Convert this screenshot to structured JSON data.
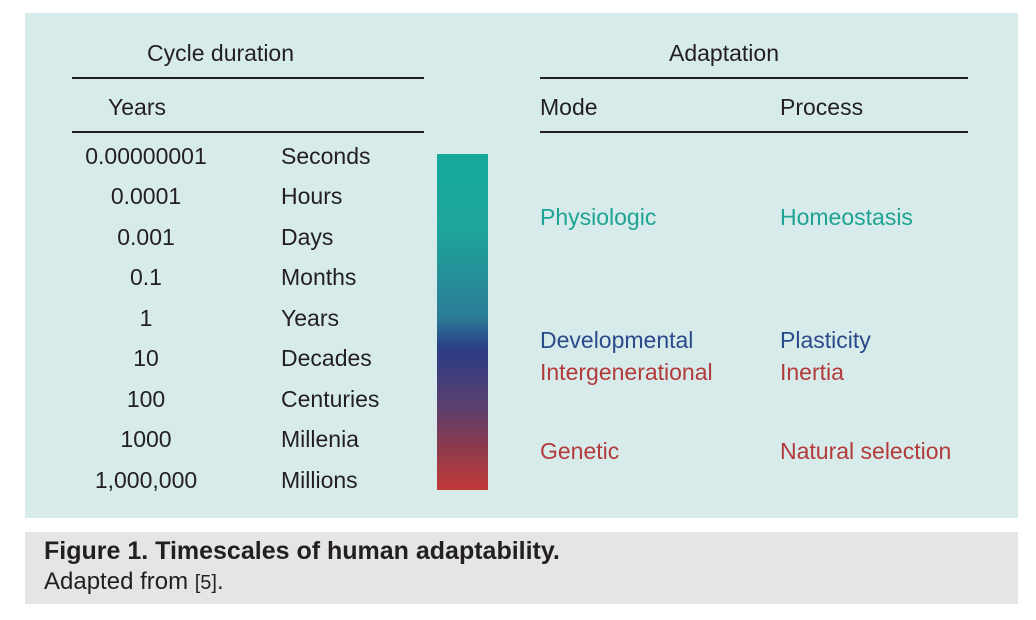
{
  "header": {
    "cycle_duration": "Cycle duration",
    "adaptation": "Adaptation",
    "years": "Years",
    "mode": "Mode",
    "process": "Process"
  },
  "rows": [
    {
      "years": "0.00000001",
      "unit": "Seconds"
    },
    {
      "years": "0.0001",
      "unit": "Hours"
    },
    {
      "years": "0.001",
      "unit": "Days"
    },
    {
      "years": "0.1",
      "unit": "Months"
    },
    {
      "years": "1",
      "unit": "Years"
    },
    {
      "years": "10",
      "unit": "Decades"
    },
    {
      "years": "100",
      "unit": "Centuries"
    },
    {
      "years": "1000",
      "unit": "Millenia"
    },
    {
      "years": "1,000,000",
      "unit": "Millions"
    }
  ],
  "gradient_colors": [
    "#15a99b",
    "#2a3d86",
    "#c23a3a"
  ],
  "adaptations": [
    {
      "mode": "Physiologic",
      "process": "Homeostasis",
      "color": "#1fa394"
    },
    {
      "mode": "Developmental",
      "process": "Plasticity",
      "color": "#2b4a8c"
    },
    {
      "mode": "Intergenerational",
      "process": "Inertia",
      "color": "#b33a3a"
    },
    {
      "mode": "Genetic",
      "process": "Natural selection",
      "color": "#b33a3a"
    }
  ],
  "caption": {
    "title": "Figure 1. Timescales of human adaptability.",
    "text": "Adapted from ",
    "ref": "[5]",
    "end": "."
  }
}
